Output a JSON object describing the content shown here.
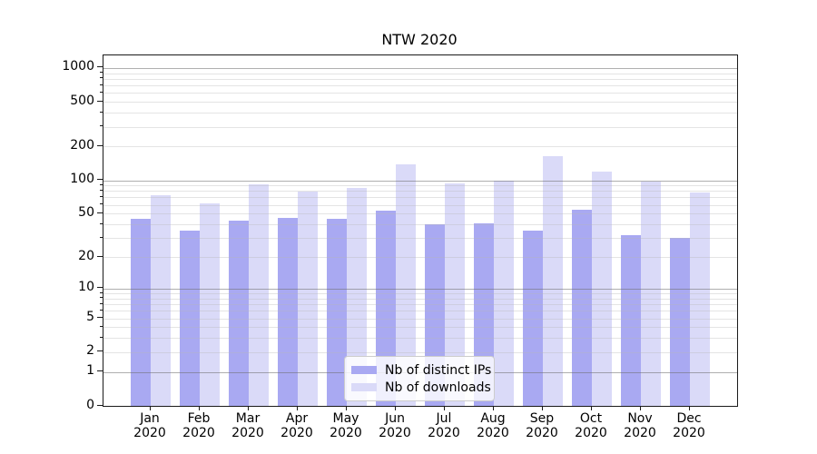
{
  "chart_data": {
    "type": "bar",
    "title": "NTW 2020",
    "categories": [
      "Jan",
      "Feb",
      "Mar",
      "Apr",
      "May",
      "Jun",
      "Jul",
      "Aug",
      "Sep",
      "Oct",
      "Nov",
      "Dec"
    ],
    "category_year": "2020",
    "series": [
      {
        "name": "Nb of distinct IPs",
        "color": "#a9a9f2",
        "values": [
          45,
          35,
          43,
          46,
          45,
          53,
          40,
          41,
          35,
          54,
          32,
          30
        ]
      },
      {
        "name": "Nb of downloads",
        "color": "#dadaf8",
        "values": [
          74,
          62,
          92,
          79,
          85,
          140,
          94,
          100,
          164,
          119,
          97,
          78
        ]
      }
    ],
    "xlabel": "",
    "ylabel": "",
    "yscale": "log1p",
    "y_tick_labels": [
      0,
      1,
      2,
      5,
      10,
      20,
      50,
      100,
      200,
      500,
      1000
    ],
    "ylim": [
      0,
      1296
    ],
    "grid": "on",
    "legend_position": "lower-center",
    "colors": {
      "major_gridline": "#b0b0b0",
      "minor_gridline": "#e6e6e6",
      "axis": "#1a1a1a",
      "legend_border": "#cccccc"
    }
  }
}
